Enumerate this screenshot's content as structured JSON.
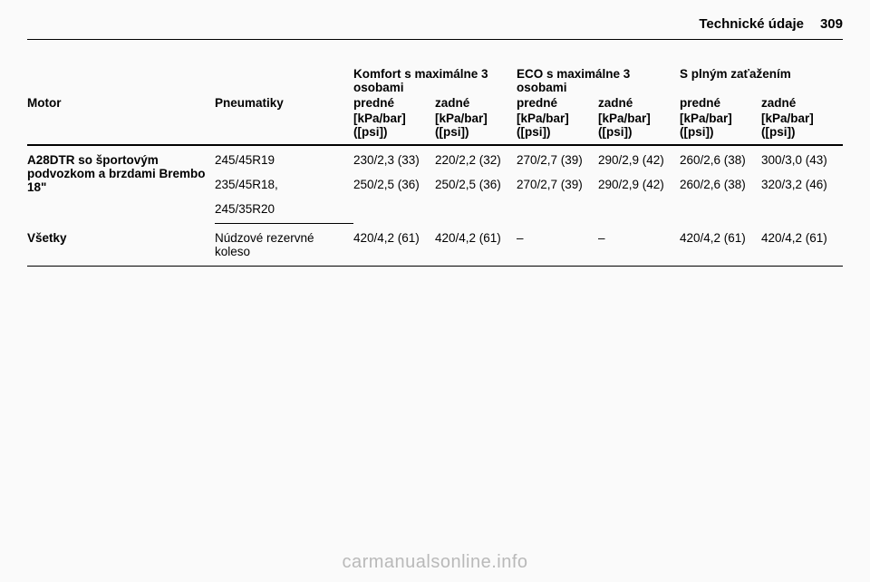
{
  "header": {
    "title": "Technické údaje",
    "page": "309"
  },
  "groupHeaders": {
    "comfort": "Komfort s maximálne 3 osobami",
    "eco": "ECO s maximálne 3 osobami",
    "full": "S plným zaťažením"
  },
  "colLabels": {
    "engine": "Motor",
    "tires": "Pneumatiky",
    "front": "predné",
    "rear": "zadné"
  },
  "unitLabel": "[kPa/bar] ([psi])",
  "rows": [
    {
      "engine": "A28DTR so športovým podvozkom a brzdami Brembo 18\"",
      "tire": "245/45R19",
      "vals": [
        "230/2,3 (33)",
        "220/2,2 (32)",
        "270/2,7 (39)",
        "290/2,9 (42)",
        "260/2,6 (38)",
        "300/3,0 (43)"
      ]
    },
    {
      "engine": "",
      "tire": "235/45R18,",
      "tire2": "245/35R20",
      "vals": [
        "250/2,5 (36)",
        "250/2,5 (36)",
        "270/2,7 (39)",
        "290/2,9 (42)",
        "260/2,6 (38)",
        "320/3,2 (46)"
      ]
    },
    {
      "engine": "Všetky",
      "tire": "Núdzové rezervné koleso",
      "vals": [
        "420/4,2 (61)",
        "420/4,2 (61)",
        "–",
        "–",
        "420/4,2 (61)",
        "420/4,2 (61)"
      ]
    }
  ],
  "watermark": "carmanualsonline.info"
}
